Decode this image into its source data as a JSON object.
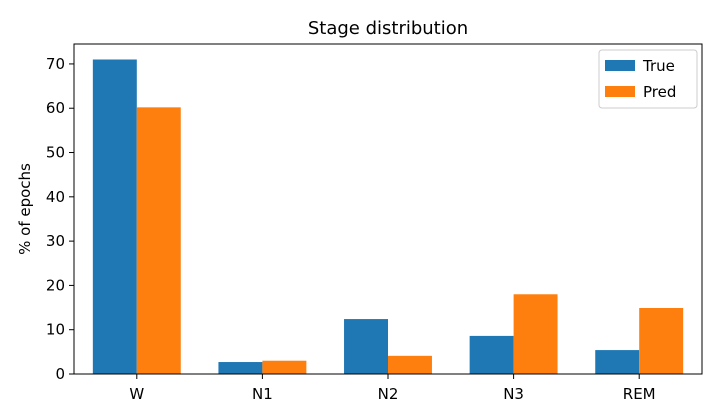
{
  "chart_data": {
    "type": "bar",
    "title": "Stage distribution",
    "xlabel": "",
    "ylabel": "% of epochs",
    "categories": [
      "W",
      "N1",
      "N2",
      "N3",
      "REM"
    ],
    "series": [
      {
        "name": "True",
        "color": "#1f77b4",
        "values": [
          71.0,
          2.7,
          12.4,
          8.6,
          5.4
        ]
      },
      {
        "name": "Pred",
        "color": "#ff7f0e",
        "values": [
          60.2,
          3.0,
          4.1,
          18.0,
          14.9
        ]
      }
    ],
    "ylim": [
      0,
      74.5
    ],
    "yticks": [
      0,
      10,
      20,
      30,
      40,
      50,
      60,
      70
    ],
    "grid": false,
    "legend_position": "top-right"
  }
}
